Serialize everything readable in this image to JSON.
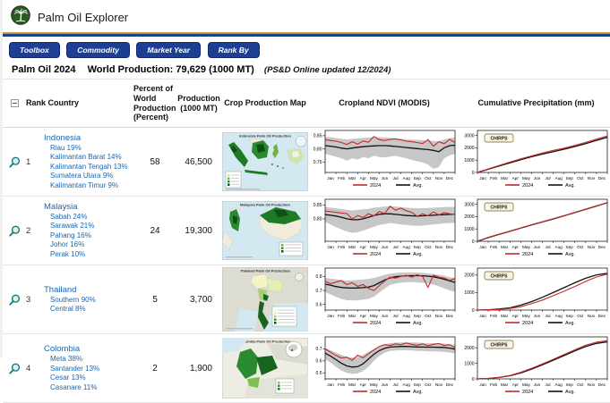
{
  "header": {
    "app_title": "Palm Oil Explorer",
    "nav": [
      "Toolbox",
      "Commodity",
      "Market Year",
      "Rank By"
    ],
    "season_title": "Palm Oil 2024",
    "production_title": "World Production: 79,629 (1000 MT)",
    "page_note": "(PS&D Online updated 12/2024)"
  },
  "table": {
    "columns": {
      "rank_country": "Rank Country",
      "percent": "Percent of World Production (Percent)",
      "production": "Production (1000 MT)",
      "map": "Crop Production Map",
      "ndvi": "Cropland NDVI (MODIS)",
      "precip": "Cumulative Precipitation (mm)"
    },
    "rows": [
      {
        "rank": "1",
        "country": "Indonesia",
        "regions": [
          "Riau 19%",
          "Kalimantan Barat 14%",
          "Kalimantan Tengah 13%",
          "Sumatera Utara 9%",
          "Kalimantan Timur 9%"
        ],
        "percent": "58",
        "production": "46,500",
        "map_title": "Indonesia Palm Oil Production",
        "map_kind": "indonesia",
        "ndvi": {
          "type": "line",
          "ylim": [
            0.71,
            0.87
          ],
          "yticks": [
            0.75,
            0.8,
            0.85
          ],
          "ytick_labels": [
            "0.75",
            "0.80",
            "0.85"
          ],
          "cur": [
            0.835,
            0.832,
            0.829,
            0.824,
            0.817,
            0.827,
            0.818,
            0.83,
            0.825,
            0.847,
            0.835,
            0.832,
            0.836,
            0.838,
            0.834,
            0.829,
            0.827,
            0.824,
            0.82,
            0.835,
            0.81,
            0.827,
            0.82,
            0.836,
            0.824
          ],
          "avg": [
            0.812,
            0.81,
            0.807,
            0.803,
            0.8,
            0.803,
            0.806,
            0.808,
            0.81,
            0.811,
            0.812,
            0.812,
            0.811,
            0.809,
            0.807,
            0.805,
            0.803,
            0.801,
            0.799,
            0.797,
            0.794,
            0.789,
            0.804,
            0.812,
            0.814
          ],
          "band_hi": [
            0.846,
            0.844,
            0.841,
            0.838,
            0.836,
            0.838,
            0.84,
            0.842,
            0.843,
            0.845,
            0.844,
            0.843,
            0.842,
            0.84,
            0.838,
            0.836,
            0.835,
            0.834,
            0.833,
            0.832,
            0.83,
            0.828,
            0.836,
            0.841,
            0.843
          ],
          "band_lo": [
            0.781,
            0.776,
            0.77,
            0.764,
            0.755,
            0.764,
            0.759,
            0.769,
            0.764,
            0.774,
            0.769,
            0.767,
            0.771,
            0.774,
            0.769,
            0.764,
            0.758,
            0.753,
            0.748,
            0.74,
            0.724,
            0.73,
            0.764,
            0.775,
            0.781
          ]
        },
        "precip": {
          "type": "line",
          "label": "CHIRPS",
          "ylim": [
            0,
            3400
          ],
          "yticks": [
            0,
            1000,
            2000,
            3000
          ],
          "ytick_labels": [
            "0",
            "1000",
            "2000",
            "3000"
          ],
          "avg": [
            0,
            260,
            520,
            780,
            1030,
            1270,
            1480,
            1680,
            1880,
            2100,
            2340,
            2600,
            2850
          ],
          "cur": [
            0,
            290,
            570,
            840,
            1100,
            1340,
            1570,
            1790,
            1970,
            2190,
            2430,
            2700,
            2960
          ]
        }
      },
      {
        "rank": "2",
        "country": "Malaysia",
        "regions": [
          "Sabah 24%",
          "Sarawak 21%",
          "Pahang 16%",
          "Johor 16%",
          "Perak 10%"
        ],
        "percent": "24",
        "production": "19,300",
        "map_title": "Malaysia Palm Oil Production",
        "map_kind": "malaysia",
        "ndvi": {
          "type": "line",
          "ylim": [
            0.72,
            0.87
          ],
          "yticks": [
            0.8,
            0.85
          ],
          "ytick_labels": [
            "0.80",
            "0.85"
          ],
          "cur": [
            0.828,
            0.826,
            0.823,
            0.821,
            0.819,
            0.799,
            0.812,
            0.805,
            0.818,
            0.811,
            0.826,
            0.819,
            0.845,
            0.831,
            0.838,
            0.829,
            0.823,
            0.809,
            0.818,
            0.811,
            0.825,
            0.814,
            0.822,
            0.818,
            0.816
          ],
          "avg": [
            0.815,
            0.813,
            0.81,
            0.806,
            0.8,
            0.797,
            0.797,
            0.8,
            0.806,
            0.812,
            0.816,
            0.818,
            0.818,
            0.816,
            0.814,
            0.812,
            0.811,
            0.81,
            0.811,
            0.812,
            0.813,
            0.814,
            0.815,
            0.816,
            0.816
          ],
          "band_hi": [
            0.843,
            0.84,
            0.838,
            0.835,
            0.832,
            0.83,
            0.832,
            0.834,
            0.836,
            0.84,
            0.842,
            0.844,
            0.845,
            0.844,
            0.842,
            0.84,
            0.839,
            0.838,
            0.838,
            0.839,
            0.84,
            0.841,
            0.842,
            0.843,
            0.843
          ],
          "band_lo": [
            0.79,
            0.78,
            0.77,
            0.762,
            0.755,
            0.75,
            0.752,
            0.758,
            0.765,
            0.772,
            0.778,
            0.782,
            0.785,
            0.783,
            0.78,
            0.778,
            0.776,
            0.775,
            0.776,
            0.778,
            0.78,
            0.782,
            0.784,
            0.785,
            0.786
          ]
        },
        "precip": {
          "type": "line",
          "label": "CHIRPS",
          "ylim": [
            0,
            3400
          ],
          "yticks": [
            0,
            1000,
            2000,
            3000
          ],
          "ytick_labels": [
            "0",
            "1000",
            "2000",
            "3000"
          ],
          "avg": [
            0,
            300,
            560,
            800,
            1060,
            1320,
            1560,
            1800,
            2060,
            2320,
            2580,
            2850,
            3120
          ],
          "cur": [
            0,
            320,
            580,
            815,
            1075,
            1335,
            1585,
            1825,
            2075,
            2335,
            2605,
            2875,
            3105
          ]
        }
      },
      {
        "rank": "3",
        "country": "Thailand",
        "regions": [
          "Southern 90%",
          "Central 8%"
        ],
        "percent": "5",
        "production": "3,700",
        "map_title": "Thailand Palm Oil Production",
        "map_kind": "thailand",
        "ndvi": {
          "type": "line",
          "ylim": [
            0.56,
            0.86
          ],
          "yticks": [
            0.6,
            0.7,
            0.8
          ],
          "ytick_labels": [
            "0.6",
            "0.7",
            "0.8"
          ],
          "cur": [
            0.765,
            0.748,
            0.76,
            0.77,
            0.742,
            0.755,
            0.73,
            0.742,
            0.715,
            0.7,
            0.735,
            0.768,
            0.795,
            0.788,
            0.8,
            0.808,
            0.795,
            0.812,
            0.8,
            0.722,
            0.808,
            0.795,
            0.788,
            0.772,
            0.785
          ],
          "avg": [
            0.745,
            0.738,
            0.728,
            0.722,
            0.718,
            0.717,
            0.718,
            0.72,
            0.724,
            0.735,
            0.755,
            0.775,
            0.79,
            0.798,
            0.802,
            0.805,
            0.806,
            0.806,
            0.805,
            0.802,
            0.798,
            0.79,
            0.78,
            0.768,
            0.758
          ],
          "band_hi": [
            0.79,
            0.785,
            0.78,
            0.775,
            0.771,
            0.772,
            0.775,
            0.778,
            0.782,
            0.79,
            0.8,
            0.812,
            0.82,
            0.825,
            0.828,
            0.83,
            0.83,
            0.828,
            0.826,
            0.822,
            0.818,
            0.812,
            0.805,
            0.795,
            0.79
          ],
          "band_lo": [
            0.69,
            0.672,
            0.655,
            0.64,
            0.63,
            0.628,
            0.63,
            0.635,
            0.64,
            0.655,
            0.685,
            0.715,
            0.74,
            0.75,
            0.756,
            0.76,
            0.76,
            0.758,
            0.755,
            0.75,
            0.742,
            0.73,
            0.715,
            0.7,
            0.692
          ]
        },
        "precip": {
          "type": "line",
          "label": "CHIRPS",
          "ylim": [
            0,
            2400
          ],
          "yticks": [
            0,
            1000,
            2000
          ],
          "ytick_labels": [
            "0",
            "1000",
            "2000"
          ],
          "avg": [
            0,
            20,
            60,
            130,
            280,
            480,
            730,
            1000,
            1280,
            1560,
            1820,
            2010,
            2100
          ],
          "cur": [
            0,
            15,
            40,
            90,
            190,
            360,
            570,
            820,
            1080,
            1350,
            1640,
            1890,
            2060
          ]
        }
      },
      {
        "rank": "4",
        "country": "Colombia",
        "regions": [
          "Meta 38%",
          "Santander 13%",
          "Cesar 13%",
          "Casanare 11%"
        ],
        "percent": "2",
        "production": "1,900",
        "map_title": "Colombia Palm Oil Production",
        "map_kind": "colombia",
        "ndvi": {
          "type": "line",
          "ylim": [
            0.45,
            0.8
          ],
          "yticks": [
            0.5,
            0.6,
            0.7
          ],
          "ytick_labels": [
            "0.5",
            "0.6",
            "0.7"
          ],
          "cur": [
            0.7,
            0.672,
            0.645,
            0.625,
            0.63,
            0.605,
            0.648,
            0.625,
            0.66,
            0.69,
            0.72,
            0.735,
            0.728,
            0.742,
            0.735,
            0.748,
            0.738,
            0.73,
            0.742,
            0.726,
            0.738,
            0.745,
            0.728,
            0.735,
            0.71
          ],
          "avg": [
            0.665,
            0.64,
            0.61,
            0.58,
            0.558,
            0.548,
            0.552,
            0.575,
            0.615,
            0.655,
            0.685,
            0.705,
            0.715,
            0.718,
            0.72,
            0.72,
            0.718,
            0.716,
            0.715,
            0.714,
            0.714,
            0.713,
            0.712,
            0.706,
            0.698
          ],
          "band_hi": [
            0.705,
            0.69,
            0.67,
            0.65,
            0.635,
            0.628,
            0.632,
            0.65,
            0.675,
            0.7,
            0.722,
            0.738,
            0.748,
            0.752,
            0.754,
            0.755,
            0.754,
            0.752,
            0.75,
            0.748,
            0.747,
            0.746,
            0.744,
            0.74,
            0.732
          ],
          "band_lo": [
            0.615,
            0.585,
            0.55,
            0.52,
            0.5,
            0.492,
            0.496,
            0.515,
            0.55,
            0.6,
            0.64,
            0.668,
            0.682,
            0.686,
            0.688,
            0.688,
            0.686,
            0.684,
            0.682,
            0.68,
            0.68,
            0.678,
            0.676,
            0.67,
            0.662
          ]
        },
        "precip": {
          "type": "line",
          "label": "CHIRPS",
          "ylim": [
            0,
            2700
          ],
          "yticks": [
            0,
            1000,
            2000
          ],
          "ytick_labels": [
            "0",
            "1000",
            "2000"
          ],
          "avg": [
            0,
            30,
            90,
            200,
            380,
            620,
            900,
            1200,
            1500,
            1800,
            2080,
            2280,
            2380
          ],
          "cur": [
            0,
            35,
            100,
            220,
            420,
            680,
            960,
            1260,
            1560,
            1870,
            2160,
            2360,
            2460
          ]
        }
      }
    ]
  },
  "chart_style": {
    "months": [
      "Jan",
      "Feb",
      "Mar",
      "Apr",
      "May",
      "Jun",
      "Jul",
      "Aug",
      "Sep",
      "Oct",
      "Nov",
      "Dec"
    ],
    "legend_cur": "2024",
    "legend_avg": "Avg.",
    "color_cur": "#c62828",
    "color_avg": "#111111",
    "color_band": "#c7c7c7"
  }
}
